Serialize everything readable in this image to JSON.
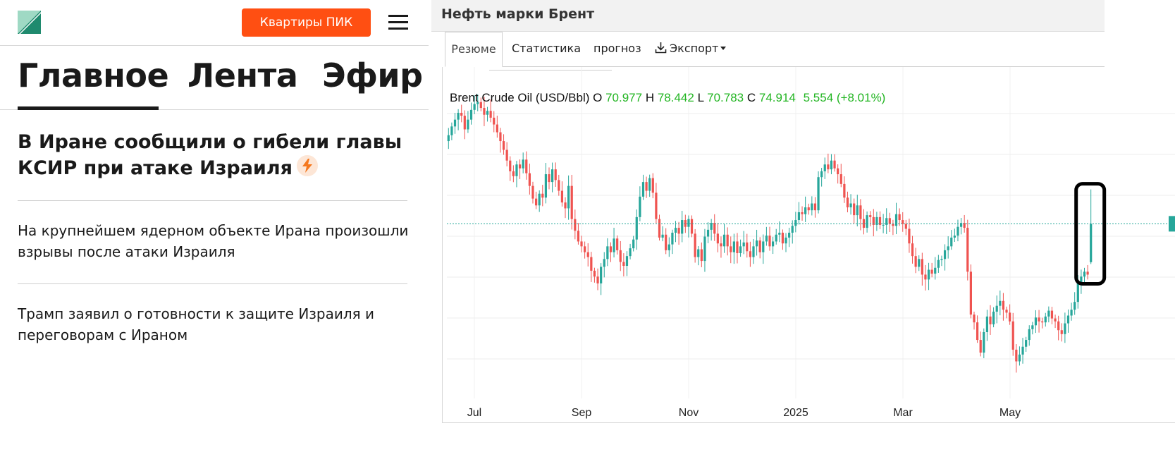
{
  "news": {
    "cta_label": "Квартиры ПИК",
    "tabs": [
      "Главное",
      "Лента",
      "Эфир"
    ],
    "headline": "В Иране сообщили о гибели главы КСИР при атаке Израиля",
    "items": [
      "На крупнейшем ядерном объекте Ирана произошли взрывы после атаки Израиля",
      "Трамп заявил о готовности к защите Израиля и переговорам с Ираном"
    ],
    "colors": {
      "accent": "#ff4f12",
      "logo_green": "#1f8a6e"
    }
  },
  "chart_panel": {
    "title": "Нефть марки Брент",
    "tabs": [
      "Резюме",
      "Статистика",
      "прогноз",
      "Экспорт"
    ],
    "ohlc": {
      "name": "Brent Crude Oil (USD/Bbl)",
      "o_label": "O",
      "o": "70.977",
      "h_label": "H",
      "h": "78.442",
      "l_label": "L",
      "l": "70.783",
      "c_label": "C",
      "c": "74.914",
      "change": "5.554 (+8.01%)"
    }
  },
  "chart_data": {
    "type": "candlestick",
    "x_axis_labels": [
      "Jul",
      "Sep",
      "Nov",
      "2025",
      "Mar",
      "May"
    ],
    "y_range": [
      57,
      91
    ],
    "last_close": 74.914,
    "colors": {
      "up": "#26a69a",
      "down": "#ef5350",
      "price_line": "#26a69a",
      "highlight": "#000000"
    },
    "highlighted_candle": {
      "open": 70.977,
      "high": 78.442,
      "low": 70.783,
      "close": 74.914
    },
    "closes": [
      84.0,
      84.9,
      85.6,
      86.3,
      86.0,
      84.6,
      85.6,
      86.6,
      87.2,
      87.4,
      86.8,
      86.1,
      86.5,
      85.8,
      85.1,
      84.3,
      83.4,
      82.5,
      81.4,
      80.3,
      79.8,
      81.0,
      80.6,
      81.5,
      80.1,
      78.8,
      77.5,
      76.8,
      78.0,
      77.6,
      80.0,
      79.2,
      80.5,
      79.4,
      78.3,
      77.1,
      76.5,
      78.8,
      75.4,
      74.2,
      73.1,
      72.6,
      72.0,
      71.5,
      70.1,
      69.5,
      68.8,
      70.5,
      71.3,
      72.6,
      72.0,
      73.4,
      72.2,
      71.0,
      70.6,
      71.6,
      72.4,
      73.3,
      75.6,
      77.7,
      79.2,
      78.3,
      79.6,
      78.1,
      75.4,
      73.5,
      73.8,
      72.2,
      72.8,
      74.0,
      74.5,
      73.9,
      75.3,
      74.6,
      75.4,
      73.9,
      71.5,
      72.3,
      71.1,
      73.6,
      74.3,
      75.0,
      73.9,
      72.9,
      72.6,
      73.8,
      72.6,
      72.0,
      73.1,
      71.9,
      72.6,
      73.0,
      72.1,
      71.5,
      72.6,
      73.2,
      72.0,
      73.1,
      73.7,
      72.6,
      73.1,
      73.8,
      74.0,
      72.9,
      73.5,
      74.0,
      74.7,
      75.3,
      76.1,
      75.9,
      76.6,
      76.3,
      77.0,
      76.3,
      79.7,
      80.3,
      81.0,
      80.5,
      81.4,
      80.6,
      80.0,
      79.0,
      77.6,
      76.6,
      77.0,
      75.8,
      76.8,
      75.4,
      74.5,
      75.8,
      75.6,
      74.8,
      75.6,
      74.8,
      74.8,
      75.5,
      74.9,
      74.7,
      75.9,
      75.3,
      74.9,
      74.4,
      72.9,
      71.6,
      70.5,
      71.3,
      69.7,
      69.2,
      70.2,
      69.8,
      70.4,
      71.2,
      71.3,
      72.2,
      72.6,
      73.5,
      73.7,
      74.6,
      75.0,
      74.5,
      70.0,
      65.6,
      64.8,
      63.0,
      61.7,
      63.8,
      65.4,
      64.6,
      65.9,
      66.5,
      67.0,
      66.1,
      65.8,
      64.9,
      62.0,
      60.8,
      61.5,
      62.3,
      63.0,
      64.1,
      64.5,
      65.3,
      64.9,
      64.8,
      65.4,
      66.0,
      65.2,
      64.9,
      64.0,
      63.6,
      64.7,
      65.5,
      66.1,
      66.9,
      68.8,
      69.5,
      70.0,
      69.7,
      74.9
    ]
  }
}
